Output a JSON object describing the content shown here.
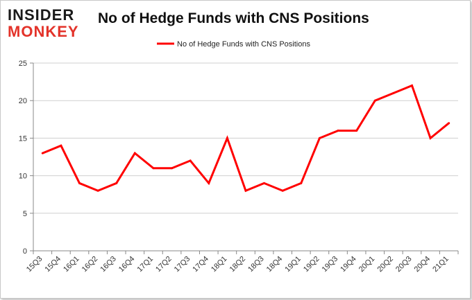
{
  "logo": {
    "line1": "INSIDER",
    "line2": "MONKEY",
    "color_dark": "#1a1a1a",
    "color_red": "#e3332a"
  },
  "chart_data": {
    "type": "line",
    "title": "No of Hedge Funds with CNS Positions",
    "xlabel": "",
    "ylabel": "",
    "categories": [
      "15Q3",
      "15Q4",
      "16Q1",
      "16Q2",
      "16Q3",
      "16Q4",
      "17Q1",
      "17Q2",
      "17Q3",
      "17Q4",
      "18Q1",
      "18Q2",
      "18Q3",
      "18Q4",
      "19Q1",
      "19Q2",
      "19Q3",
      "19Q4",
      "20Q1",
      "20Q2",
      "20Q3",
      "20Q4",
      "21Q1"
    ],
    "series": [
      {
        "name": "No of Hedge Funds with CNS Positions",
        "color": "#ff0000",
        "values": [
          13,
          14,
          9,
          8,
          9,
          13,
          11,
          11,
          12,
          9,
          15,
          8,
          9,
          8,
          9,
          15,
          16,
          16,
          20,
          21,
          22,
          15,
          17
        ]
      }
    ],
    "ylim": [
      0,
      25
    ],
    "yticks": [
      0,
      5,
      10,
      15,
      20,
      25
    ],
    "grid": true,
    "legend": "top-center"
  }
}
